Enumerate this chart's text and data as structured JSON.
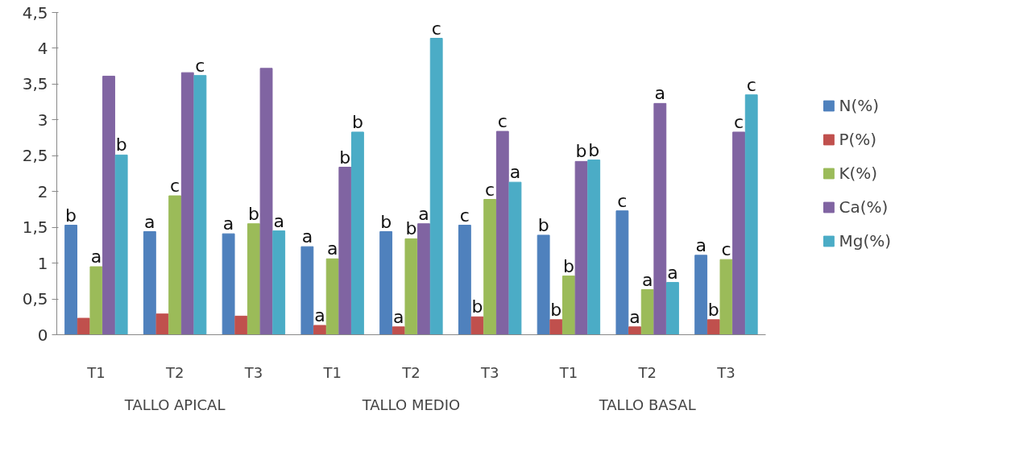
{
  "chart_data": {
    "type": "bar",
    "categories": [
      "T1",
      "T2",
      "T3",
      "T1",
      "T2",
      "T3",
      "T1",
      "T2",
      "T3"
    ],
    "annotations": [
      "TALLO APICAL",
      "TALLO MEDIO",
      "TALLO BASAL"
    ],
    "series": [
      {
        "name": "N(%)",
        "color": "#4f81bd",
        "values": [
          1.53,
          1.44,
          1.41,
          1.23,
          1.44,
          1.53,
          1.39,
          1.73,
          1.11
        ],
        "value_labels": [
          "b",
          "a",
          "a",
          "a",
          "b",
          "c",
          "b",
          "c",
          "a"
        ]
      },
      {
        "name": "P(%)",
        "color": "#c0504d",
        "values": [
          0.23,
          0.29,
          0.26,
          0.13,
          0.11,
          0.25,
          0.21,
          0.11,
          0.21
        ],
        "value_labels": [
          null,
          null,
          null,
          "a",
          "a",
          "b",
          "b",
          "a",
          "b"
        ]
      },
      {
        "name": "K(%)",
        "color": "#9bbb59",
        "values": [
          0.95,
          1.94,
          1.55,
          1.06,
          1.34,
          1.89,
          0.82,
          0.63,
          1.05
        ],
        "value_labels": [
          "a",
          "c",
          "b",
          "a",
          "b",
          "c",
          "b",
          "a",
          "c"
        ]
      },
      {
        "name": "Ca(%)",
        "color": "#8064a2",
        "values": [
          3.61,
          3.66,
          3.72,
          2.34,
          1.55,
          2.84,
          2.42,
          3.23,
          2.83
        ],
        "value_labels": [
          null,
          null,
          null,
          "b",
          "a",
          "c",
          "b",
          "a",
          "c"
        ]
      },
      {
        "name": "Mg(%)",
        "color": "#4bacc6",
        "values": [
          2.51,
          3.62,
          1.45,
          2.83,
          4.14,
          2.13,
          2.44,
          0.73,
          3.35
        ],
        "value_labels": [
          "b",
          "c",
          "a",
          "b",
          "c",
          "a",
          "b",
          "a",
          "c"
        ]
      }
    ],
    "ylim": [
      0,
      4.5
    ],
    "yticks": [
      0,
      {
        "value": 0.5,
        "label": "0,5"
      },
      1,
      {
        "value": 1.5,
        "label": "1,5"
      },
      2,
      {
        "value": 2.5,
        "label": "2,5"
      },
      3,
      {
        "value": 3.5,
        "label": "3,5"
      },
      4,
      {
        "value": 4.5,
        "label": "4,5"
      }
    ],
    "grid": false,
    "legend": "right"
  }
}
